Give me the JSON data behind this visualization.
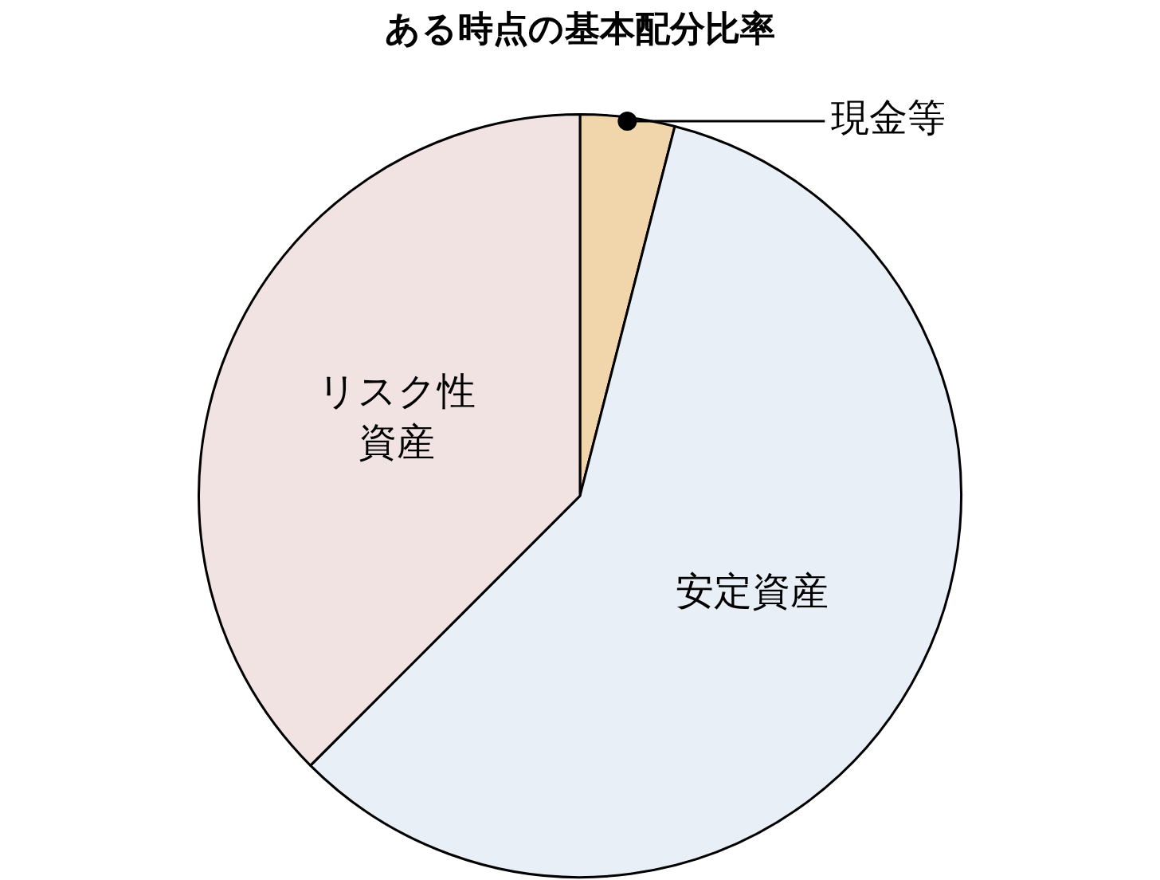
{
  "chart_data": {
    "type": "pie",
    "title": "ある時点の基本配分比率",
    "categories": [
      "現金等",
      "安定資産",
      "リスク性資産"
    ],
    "values": [
      4,
      58.5,
      37.5
    ],
    "colors": [
      "#f0d6aa",
      "#e8eff6",
      "#f2e3e3"
    ],
    "legend": false
  }
}
